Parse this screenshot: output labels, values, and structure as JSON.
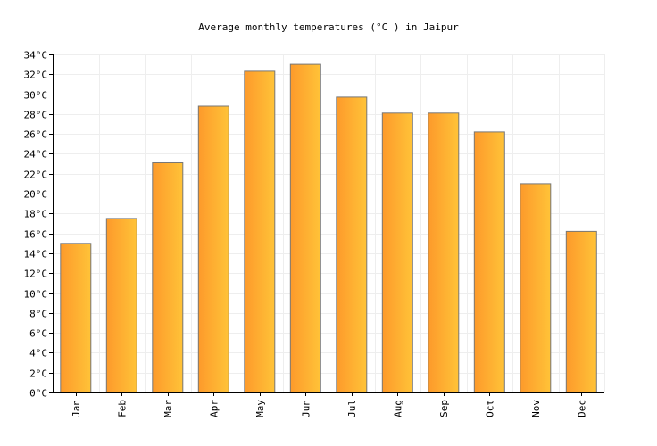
{
  "chart_data": {
    "type": "bar",
    "title": "Average monthly temperatures (°C ) in Jaipur",
    "xlabel": "",
    "ylabel": "",
    "categories": [
      "Jan",
      "Feb",
      "Mar",
      "Apr",
      "May",
      "Jun",
      "Jul",
      "Aug",
      "Sep",
      "Oct",
      "Nov",
      "Dec"
    ],
    "values": [
      15.0,
      17.5,
      23.1,
      28.8,
      32.3,
      33.0,
      29.7,
      28.1,
      28.1,
      26.2,
      21.0,
      16.2
    ],
    "ylim": [
      0,
      34
    ],
    "y_tick_step": 2,
    "y_unit_suffix": "°C",
    "grid": true,
    "legend": "none",
    "colors": {
      "bar_left": "#fd9a2b",
      "bar_right": "#ffc338",
      "bar_stroke": "#777777",
      "grid": "#eeeeee",
      "axis": "#000000"
    }
  }
}
